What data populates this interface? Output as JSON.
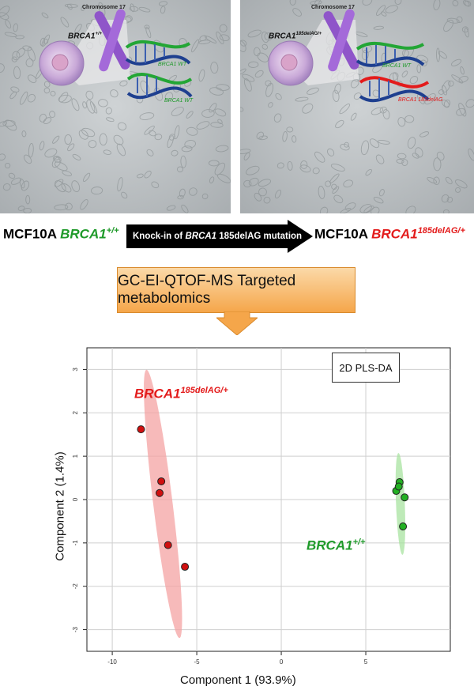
{
  "top_panels": {
    "left": {
      "chromosome_label": "Chromosome 17",
      "genotype_label_base": "BRCA1",
      "genotype_label_sup": "+/+",
      "allele_1": "BRCA1 WT",
      "allele_2": "BRCA1 WT"
    },
    "right": {
      "chromosome_label": "Chromosome 17",
      "genotype_label_base": "BRCA1",
      "genotype_label_sup": "185delAG/+",
      "allele_1": "BRCA1 WT",
      "allele_2": "BRCA1 185delAG"
    }
  },
  "workflow": {
    "left_line_prefix": "MCF10A",
    "left_line_gene": "BRCA1",
    "left_line_sup": "+/+",
    "arrow_text_1": "Knock-in of ",
    "arrow_text_gene": "BRCA1",
    "arrow_text_2": " 185delAG mutation",
    "right_line_prefix": "MCF10A",
    "right_line_gene": "BRCA1",
    "right_line_sup": "185delAG/+",
    "method_box": "GC-EI-QTOF-MS Targeted metabolomics"
  },
  "colors": {
    "wildtype": "#1f9a2a",
    "mutant": "#e31b1b",
    "box_orange": "#f5a64a",
    "ellipse_red": "#f4a3a3",
    "ellipse_green": "#a8e3a0"
  },
  "chart_data": {
    "type": "scatter",
    "title": "2D PLS-DA",
    "xlabel": "Component 1 (93.9%)",
    "ylabel": "Component 2 (1.4%)",
    "xlim": [
      -11.5,
      10
    ],
    "ylim": [
      -3.5,
      3.5
    ],
    "xticks": [
      -10,
      -5,
      0,
      5
    ],
    "yticks": [
      -3,
      -2,
      -1,
      0,
      1,
      2,
      3
    ],
    "grid": true,
    "series": [
      {
        "name": "BRCA1 185delAG/+",
        "label_base": "BRCA1",
        "label_sup": "185delAG/+",
        "color": "#d01010",
        "points": [
          [
            -8.3,
            1.62
          ],
          [
            -7.1,
            0.42
          ],
          [
            -7.2,
            0.15
          ],
          [
            -6.7,
            -1.05
          ],
          [
            -5.7,
            -1.55
          ]
        ],
        "ellipse": {
          "center": [
            -7.0,
            -0.1
          ],
          "semi_major": 3.25,
          "semi_minor": 0.55,
          "angle_deg": -72
        }
      },
      {
        "name": "BRCA1 +/+",
        "label_base": "BRCA1",
        "label_sup": "+/+",
        "color": "#22b022",
        "points": [
          [
            7.0,
            0.4
          ],
          [
            6.8,
            0.2
          ],
          [
            7.3,
            0.05
          ],
          [
            7.2,
            -0.62
          ],
          [
            6.95,
            0.3
          ]
        ],
        "ellipse": {
          "center": [
            7.05,
            -0.1
          ],
          "semi_major": 1.18,
          "semi_minor": 0.26,
          "angle_deg": -84
        }
      }
    ]
  }
}
